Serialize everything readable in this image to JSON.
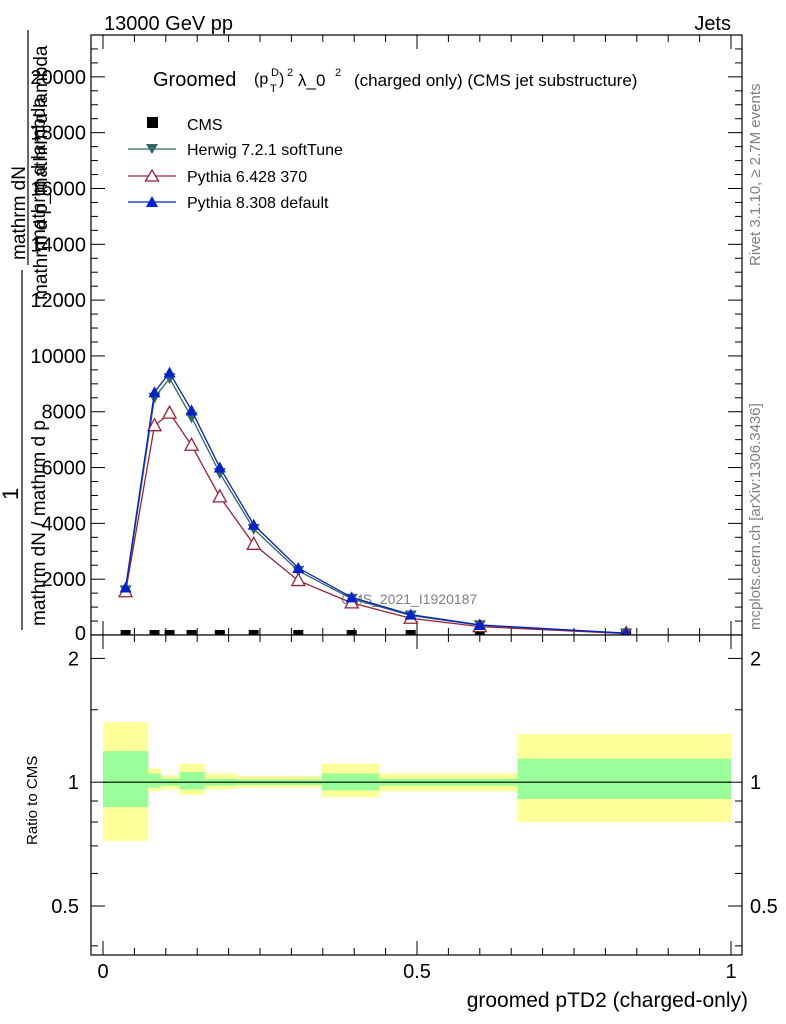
{
  "header": {
    "energy": "13000 GeV pp",
    "category": "Jets",
    "rivet": "Rivet 3.1.10, ≥ 2.7M events",
    "mcplots": "mcplots.cern.ch [arXiv:1306.3436]"
  },
  "chart_data": [
    {
      "type": "line",
      "panel": "main",
      "title": "Groomed (p_T^D)^2 λ_0^2  (charged only) (CMS jet substructure)",
      "title_prefix": "Groomed",
      "title_suffix": "(charged only) (CMS jet substructure)",
      "ylabel": "1 / mathrm dN / mathrm d p_T mathrm d lambda ... mathrm d^2N / mathrm d p_T mathrm d lambda",
      "ylabel_lines": [
        "mathrm dN",
        "mathrm d p_mathrm d lambda",
        "1",
        "mathrm dN / mathrm d p",
        "mathrm d lambda"
      ],
      "xlim": [
        0,
        1
      ],
      "ylim": [
        0,
        21500
      ],
      "yticks": [
        2000,
        4000,
        6000,
        8000,
        10000,
        12000,
        14000,
        16000,
        18000,
        20000
      ],
      "ytick_labels": [
        "2000",
        "4000",
        "6000",
        "8000",
        "10000",
        "12000",
        "14000",
        "16000",
        "18000",
        "20000"
      ],
      "ytick_zero_label": "0",
      "watermark": "CMS_2021_I1920187",
      "legend_position": "top-left",
      "series": [
        {
          "name": "CMS",
          "marker": "square",
          "color": "#000000",
          "x": [
            0.036,
            0.082,
            0.106,
            0.141,
            0.186,
            0.24,
            0.311,
            0.396,
            0.49,
            0.6,
            0.833
          ],
          "y": [
            0,
            0,
            0,
            0,
            0,
            0,
            0,
            0,
            0,
            0,
            0
          ]
        },
        {
          "name": "Herwig 7.2.1 softTune",
          "marker": "triangle-down",
          "color": "#336666",
          "x": [
            0.036,
            0.082,
            0.106,
            0.141,
            0.186,
            0.24,
            0.311,
            0.396,
            0.49,
            0.6,
            0.833
          ],
          "y": [
            1600,
            8500,
            9200,
            7800,
            5800,
            3800,
            2300,
            1300,
            700,
            350,
            60
          ]
        },
        {
          "name": "Pythia 6.428 370",
          "marker": "triangle-open",
          "color": "#992233",
          "x": [
            0.036,
            0.082,
            0.106,
            0.141,
            0.186,
            0.24,
            0.311,
            0.396,
            0.49,
            0.6,
            0.833
          ],
          "y": [
            1550,
            7500,
            7950,
            6800,
            4950,
            3250,
            1950,
            1150,
            600,
            300,
            50
          ]
        },
        {
          "name": "Pythia 8.308 default",
          "marker": "triangle-up",
          "color": "#0022cc",
          "x": [
            0.036,
            0.082,
            0.106,
            0.141,
            0.186,
            0.24,
            0.311,
            0.396,
            0.49,
            0.6,
            0.833
          ],
          "y": [
            1700,
            8700,
            9400,
            8050,
            6000,
            3950,
            2400,
            1350,
            730,
            360,
            65
          ]
        }
      ]
    },
    {
      "type": "area",
      "panel": "ratio",
      "ylabel": "Ratio to CMS",
      "xlabel": "groomed pTD2 (charged-only)",
      "ylim": [
        0.38,
        2.28
      ],
      "yticks": [
        0.5,
        1,
        2
      ],
      "ytick_labels": [
        "0.5",
        "1",
        "2"
      ],
      "xticks": [
        0,
        0.5,
        1
      ],
      "xtick_labels": [
        "0",
        "0.5",
        "1"
      ],
      "reference": 1,
      "bins": [
        {
          "x0": 0.0,
          "x1": 0.072,
          "inner": [
            0.87,
            1.19
          ],
          "outer": [
            0.72,
            1.4
          ]
        },
        {
          "x0": 0.072,
          "x1": 0.092,
          "inner": [
            0.97,
            1.05
          ],
          "outer": [
            0.95,
            1.08
          ]
        },
        {
          "x0": 0.092,
          "x1": 0.122,
          "inner": [
            0.98,
            1.02
          ],
          "outer": [
            0.96,
            1.04
          ]
        },
        {
          "x0": 0.122,
          "x1": 0.162,
          "inner": [
            0.96,
            1.06
          ],
          "outer": [
            0.93,
            1.11
          ]
        },
        {
          "x0": 0.162,
          "x1": 0.213,
          "inner": [
            0.98,
            1.02
          ],
          "outer": [
            0.96,
            1.05
          ]
        },
        {
          "x0": 0.213,
          "x1": 0.278,
          "inner": [
            0.985,
            1.015
          ],
          "outer": [
            0.97,
            1.035
          ]
        },
        {
          "x0": 0.278,
          "x1": 0.348,
          "inner": [
            0.985,
            1.015
          ],
          "outer": [
            0.97,
            1.035
          ]
        },
        {
          "x0": 0.348,
          "x1": 0.44,
          "inner": [
            0.955,
            1.05
          ],
          "outer": [
            0.92,
            1.11
          ]
        },
        {
          "x0": 0.44,
          "x1": 0.66,
          "inner": [
            0.98,
            1.02
          ],
          "outer": [
            0.95,
            1.05
          ]
        },
        {
          "x0": 0.66,
          "x1": 1.0,
          "inner": [
            0.91,
            1.14
          ],
          "outer": [
            0.8,
            1.31
          ]
        }
      ],
      "colors": {
        "inner": "#99ff99",
        "outer": "#ffff99"
      }
    }
  ]
}
